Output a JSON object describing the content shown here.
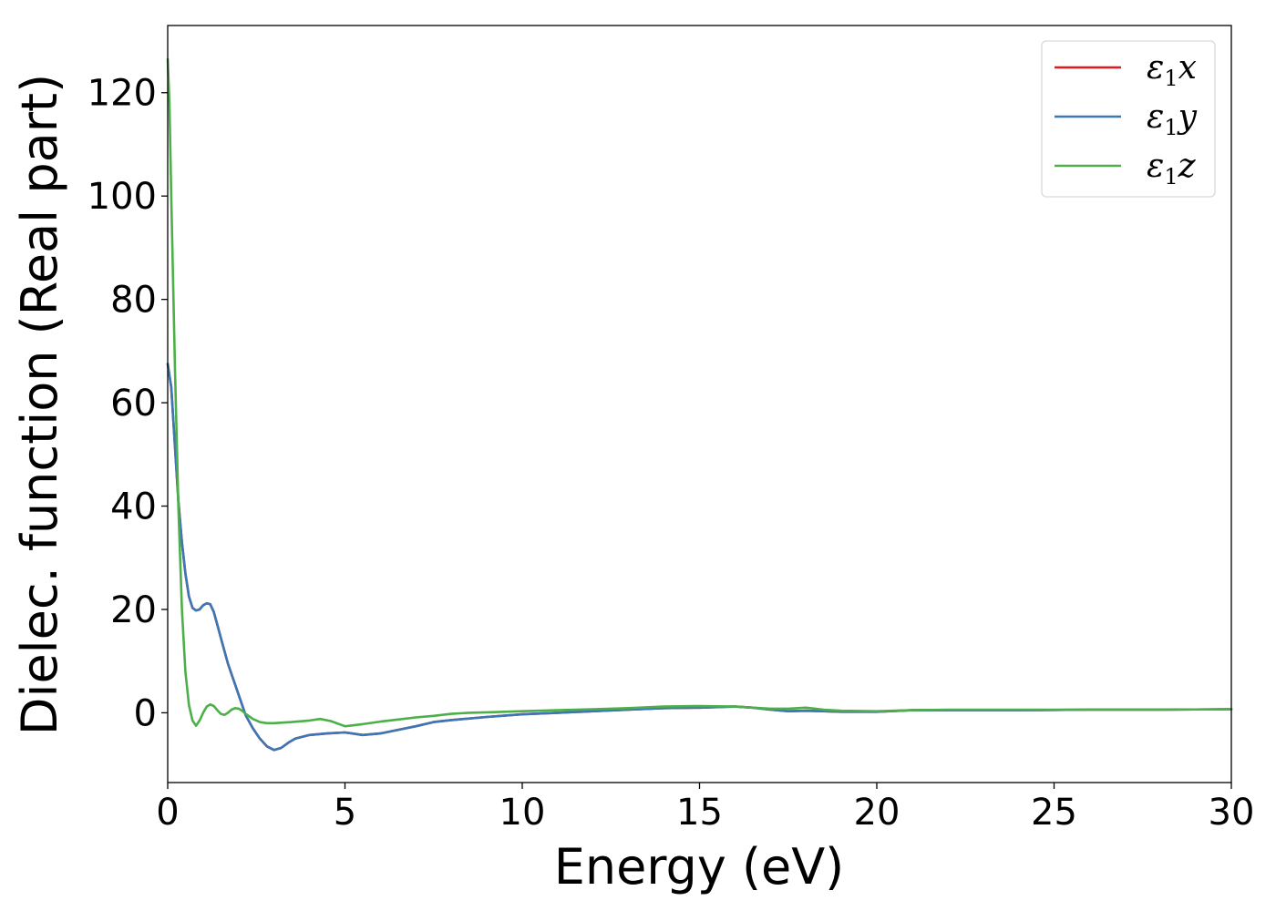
{
  "chart_data": {
    "type": "line",
    "xlabel": "Energy (eV)",
    "ylabel": "Dielec. function (Real part)",
    "xlim": [
      0,
      30
    ],
    "ylim": [
      -13.5,
      133
    ],
    "xticks": [
      "0",
      "5",
      "10",
      "15",
      "20",
      "25",
      "30"
    ],
    "yticks": [
      "0",
      "20",
      "40",
      "60",
      "80",
      "100",
      "120"
    ],
    "grid": false,
    "legend_position": "top-right",
    "series": [
      {
        "name": "ε1x",
        "legend_base": "ε",
        "legend_sub": "1",
        "legend_var": "x",
        "color": "#e41a1c",
        "x": [
          0,
          0.1,
          0.2,
          0.3,
          0.4,
          0.5,
          0.6,
          0.7,
          0.8,
          0.9,
          1.0,
          1.1,
          1.2,
          1.3,
          1.4,
          1.5,
          1.6,
          1.7,
          1.8,
          2.0,
          2.2,
          2.4,
          2.6,
          2.8,
          3.0,
          3.2,
          3.4,
          3.6,
          4.0,
          4.5,
          5.0,
          5.5,
          6.0,
          6.5,
          7.0,
          7.5,
          8.0,
          9.0,
          10.0,
          11.0,
          12.0,
          13.0,
          14.0,
          15.0,
          16.0,
          16.5,
          17.0,
          17.5,
          18.0,
          18.5,
          19.0,
          20.0,
          21.0,
          22.0,
          24.0,
          26.0,
          28.0,
          30.0
        ],
        "y": [
          67.5,
          63,
          52,
          41,
          33,
          27,
          22.5,
          20.3,
          19.8,
          20.0,
          20.8,
          21.2,
          21.0,
          19.5,
          17.0,
          14.5,
          12.0,
          9.5,
          7.5,
          3.5,
          -0.5,
          -3.0,
          -5.0,
          -6.5,
          -7.2,
          -6.8,
          -5.8,
          -5.0,
          -4.3,
          -4.0,
          -3.8,
          -4.3,
          -4.0,
          -3.3,
          -2.6,
          -1.8,
          -1.4,
          -0.8,
          -0.3,
          0.0,
          0.3,
          0.6,
          0.9,
          1.0,
          1.2,
          1.0,
          0.6,
          0.3,
          0.4,
          0.3,
          0.2,
          0.2,
          0.5,
          0.5,
          0.5,
          0.6,
          0.6,
          0.7
        ]
      },
      {
        "name": "ε1y",
        "legend_base": "ε",
        "legend_sub": "1",
        "legend_var": "y",
        "color": "#3a77b6",
        "x": [
          0,
          0.1,
          0.2,
          0.3,
          0.4,
          0.5,
          0.6,
          0.7,
          0.8,
          0.9,
          1.0,
          1.1,
          1.2,
          1.3,
          1.4,
          1.5,
          1.6,
          1.7,
          1.8,
          2.0,
          2.2,
          2.4,
          2.6,
          2.8,
          3.0,
          3.2,
          3.4,
          3.6,
          4.0,
          4.5,
          5.0,
          5.5,
          6.0,
          6.5,
          7.0,
          7.5,
          8.0,
          9.0,
          10.0,
          11.0,
          12.0,
          13.0,
          14.0,
          15.0,
          16.0,
          16.5,
          17.0,
          17.5,
          18.0,
          18.5,
          19.0,
          20.0,
          21.0,
          22.0,
          24.0,
          26.0,
          28.0,
          30.0
        ],
        "y": [
          67.5,
          63,
          52,
          41,
          33,
          27,
          22.5,
          20.3,
          19.8,
          20.0,
          20.8,
          21.2,
          21.0,
          19.5,
          17.0,
          14.5,
          12.0,
          9.5,
          7.5,
          3.5,
          -0.5,
          -3.0,
          -5.0,
          -6.5,
          -7.2,
          -6.8,
          -5.8,
          -5.0,
          -4.3,
          -4.0,
          -3.8,
          -4.3,
          -4.0,
          -3.3,
          -2.6,
          -1.8,
          -1.4,
          -0.8,
          -0.3,
          0.0,
          0.3,
          0.6,
          0.9,
          1.0,
          1.2,
          1.0,
          0.6,
          0.3,
          0.4,
          0.3,
          0.2,
          0.2,
          0.5,
          0.5,
          0.5,
          0.6,
          0.6,
          0.7
        ]
      },
      {
        "name": "ε1z",
        "legend_base": "ε",
        "legend_sub": "1",
        "legend_var": "z",
        "color": "#4daf4a",
        "x": [
          0,
          0.05,
          0.1,
          0.2,
          0.3,
          0.4,
          0.5,
          0.6,
          0.7,
          0.8,
          0.9,
          1.0,
          1.1,
          1.2,
          1.3,
          1.4,
          1.5,
          1.6,
          1.7,
          1.8,
          1.9,
          2.0,
          2.1,
          2.2,
          2.4,
          2.6,
          2.8,
          3.0,
          3.5,
          4.0,
          4.3,
          4.6,
          5.0,
          5.5,
          6.0,
          6.5,
          7.0,
          7.5,
          8.0,
          8.5,
          9.0,
          10.0,
          11.0,
          12.0,
          13.0,
          14.0,
          15.0,
          16.0,
          16.5,
          17.0,
          17.5,
          18.0,
          18.5,
          19.0,
          20.0,
          21.0,
          22.0,
          24.0,
          26.0,
          28.0,
          30.0
        ],
        "y": [
          126.5,
          118,
          100,
          68,
          40,
          20,
          8,
          1.5,
          -1.5,
          -2.5,
          -1.5,
          0.0,
          1.2,
          1.6,
          1.3,
          0.5,
          -0.2,
          -0.4,
          0.0,
          0.6,
          0.9,
          0.8,
          0.4,
          -0.2,
          -1.2,
          -1.8,
          -2.0,
          -2.0,
          -1.8,
          -1.5,
          -1.2,
          -1.6,
          -2.6,
          -2.2,
          -1.7,
          -1.3,
          -0.9,
          -0.6,
          -0.2,
          0.0,
          0.1,
          0.3,
          0.5,
          0.7,
          0.9,
          1.2,
          1.3,
          1.2,
          1.0,
          0.8,
          0.8,
          1.0,
          0.6,
          0.4,
          0.3,
          0.5,
          0.6,
          0.6,
          0.6,
          0.6,
          0.7
        ]
      }
    ]
  }
}
